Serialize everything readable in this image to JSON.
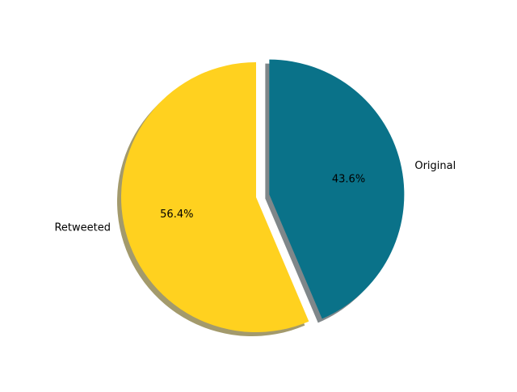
{
  "chart_data": {
    "type": "pie",
    "labels": [
      "Original",
      "Retweeted"
    ],
    "values": [
      43.6,
      56.4
    ],
    "pct_labels": [
      "43.6%",
      "56.4%"
    ],
    "colors": [
      "#0a7289",
      "#ffd11f"
    ],
    "shadow_colors": [
      "#7f878a",
      "#a39a6c"
    ],
    "exploded": [
      "Original"
    ],
    "start_angle_deg": 90,
    "direction": "clockwise",
    "shadow": true,
    "title": "",
    "legend": false
  }
}
